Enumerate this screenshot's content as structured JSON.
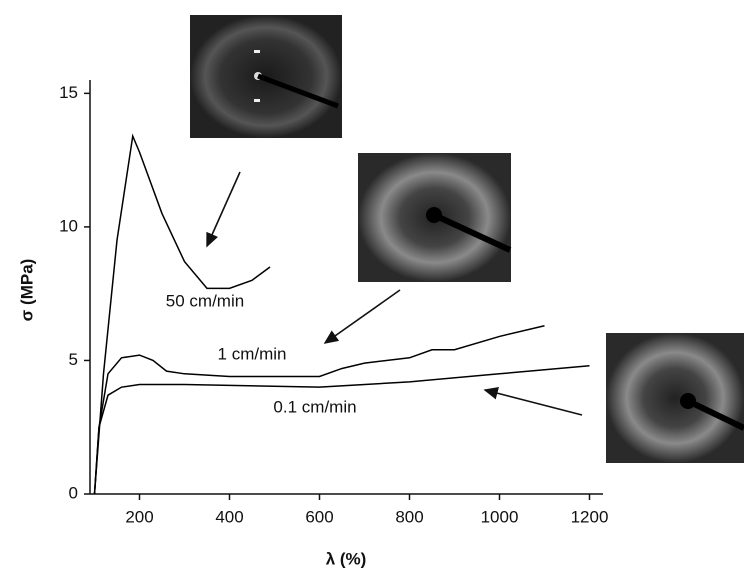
{
  "chart_data": {
    "type": "line",
    "xlabel": "λ (%)",
    "ylabel": "σ (MPa)",
    "xlim": [
      90,
      1230
    ],
    "ylim": [
      0,
      15.5
    ],
    "xticks": [
      200,
      400,
      600,
      800,
      1000,
      1200
    ],
    "yticks": [
      0,
      5,
      10,
      15
    ],
    "series": [
      {
        "name": "50 cm/min",
        "color": "#000000",
        "x": [
          100,
          120,
          150,
          185,
          200,
          250,
          300,
          350,
          400,
          450,
          490
        ],
        "values": [
          0,
          4.5,
          9.5,
          13.4,
          12.8,
          10.5,
          8.7,
          7.7,
          7.7,
          8.0,
          8.5
        ]
      },
      {
        "name": "1 cm/min",
        "color": "#000000",
        "x": [
          100,
          110,
          130,
          160,
          200,
          230,
          260,
          300,
          400,
          500,
          600,
          650,
          700,
          800,
          850,
          900,
          1000,
          1100
        ],
        "values": [
          0,
          2.5,
          4.5,
          5.1,
          5.2,
          5.0,
          4.6,
          4.5,
          4.4,
          4.4,
          4.4,
          4.7,
          4.9,
          5.1,
          5.4,
          5.4,
          5.9,
          6.3
        ]
      },
      {
        "name": "0.1 cm/min",
        "color": "#000000",
        "x": [
          100,
          110,
          130,
          160,
          200,
          300,
          600,
          800,
          1000,
          1200
        ],
        "values": [
          0,
          2.5,
          3.7,
          4.0,
          4.1,
          4.1,
          4.0,
          4.2,
          4.5,
          4.8
        ]
      }
    ]
  }
}
